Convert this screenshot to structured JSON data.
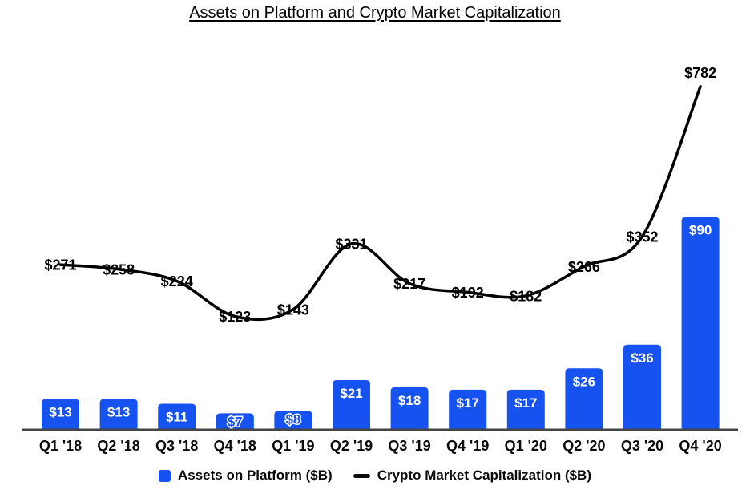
{
  "title": "Assets on Platform and Crypto Market Capitalization",
  "legend": {
    "bar_label": "Assets on Platform ($B)",
    "line_label": "Crypto Market Capitalization ($B)"
  },
  "colors": {
    "bar_blue": "#1652F0",
    "line_black": "#000000",
    "axis_gray": "#454545",
    "bar_label_white": "#ffffff"
  },
  "chart_data": {
    "type": "combo",
    "title": "Assets on Platform and Crypto Market Capitalization",
    "categories": [
      "Q1 '18",
      "Q2 '18",
      "Q3 '18",
      "Q4 '18",
      "Q1 '19",
      "Q2 '19",
      "Q3 '19",
      "Q4 '19",
      "Q1 '20",
      "Q2 '20",
      "Q3 '20",
      "Q4 '20"
    ],
    "series": [
      {
        "name": "Assets on Platform ($B)",
        "type": "bar",
        "color": "#1652F0",
        "values": [
          13,
          13,
          11,
          7,
          8,
          21,
          18,
          17,
          17,
          26,
          36,
          90
        ],
        "labels": [
          "$13",
          "$13",
          "$11",
          "$7",
          "$8",
          "$21",
          "$18",
          "$17",
          "$17",
          "$26",
          "$36",
          "$90"
        ]
      },
      {
        "name": "Crypto Market Capitalization ($B)",
        "type": "line",
        "color": "#000000",
        "values": [
          271,
          258,
          224,
          123,
          143,
          331,
          217,
          192,
          182,
          266,
          352,
          782
        ],
        "labels": [
          "$271",
          "$258",
          "$224",
          "$123",
          "$143",
          "$331",
          "$217",
          "$192",
          "$182",
          "$266",
          "$352",
          "$782"
        ]
      }
    ],
    "xlabel": "",
    "ylabel": "",
    "axis_lines": "x-axis baseline only, no ticks, no y-axis",
    "grid": false,
    "value_labels": "shown on every bar and every line point",
    "legend_position": "bottom"
  }
}
